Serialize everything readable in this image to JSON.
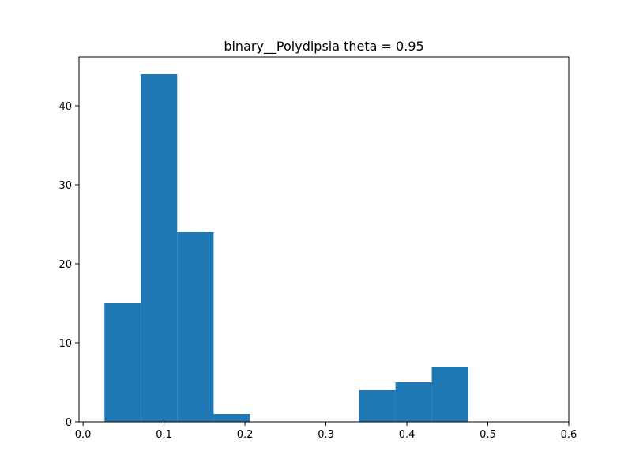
{
  "chart_data": {
    "type": "bar",
    "title": "binary__Polydipsia theta = 0.95",
    "xlabel": "",
    "ylabel": "",
    "xlim": [
      -0.005,
      0.6
    ],
    "ylim": [
      0,
      46.2
    ],
    "xticks": [
      0.0,
      0.1,
      0.2,
      0.3,
      0.4,
      0.5,
      0.6
    ],
    "xtick_labels": [
      "0.0",
      "0.1",
      "0.2",
      "0.3",
      "0.4",
      "0.5",
      "0.6"
    ],
    "yticks": [
      0,
      10,
      20,
      30,
      40
    ],
    "ytick_labels": [
      "0",
      "10",
      "20",
      "30",
      "40"
    ],
    "bar_color": "#1f77b4",
    "grid": false,
    "legend": false,
    "bins": [
      {
        "x0": 0.0265,
        "x1": 0.0714,
        "count": 15
      },
      {
        "x0": 0.0714,
        "x1": 0.1163,
        "count": 44
      },
      {
        "x0": 0.1163,
        "x1": 0.1613,
        "count": 24
      },
      {
        "x0": 0.1613,
        "x1": 0.2062,
        "count": 1
      },
      {
        "x0": 0.2062,
        "x1": 0.2511,
        "count": 0
      },
      {
        "x0": 0.2511,
        "x1": 0.296,
        "count": 0
      },
      {
        "x0": 0.296,
        "x1": 0.3409,
        "count": 0
      },
      {
        "x0": 0.3409,
        "x1": 0.3859,
        "count": 4
      },
      {
        "x0": 0.3859,
        "x1": 0.4308,
        "count": 5
      },
      {
        "x0": 0.4308,
        "x1": 0.4757,
        "count": 7
      }
    ]
  }
}
